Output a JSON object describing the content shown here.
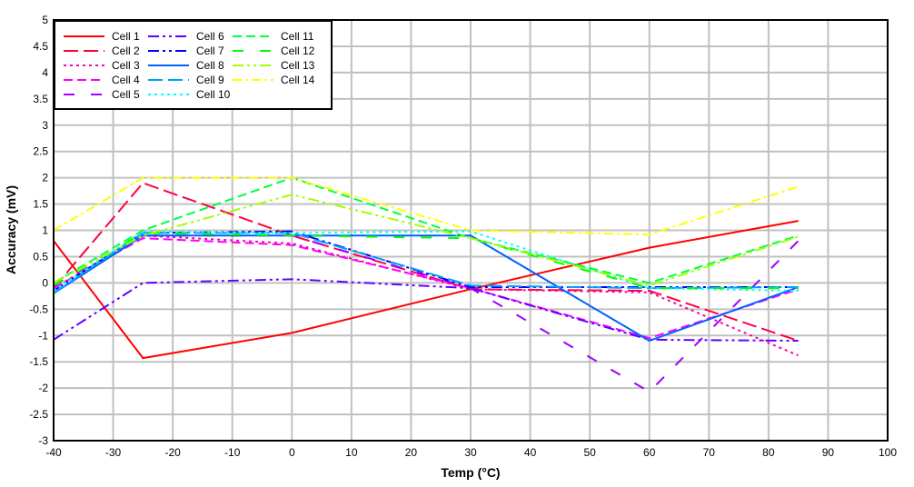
{
  "chart_data": {
    "type": "line",
    "title": "",
    "xlabel": "Temp (°C)",
    "ylabel": "Accuracy (mV)",
    "xlim": [
      -40,
      100
    ],
    "ylim": [
      -3,
      5
    ],
    "xticks": [
      -40,
      -30,
      -20,
      -10,
      0,
      10,
      20,
      30,
      40,
      50,
      60,
      70,
      80,
      90,
      100
    ],
    "yticks": [
      -3,
      -2.5,
      -2,
      -1.5,
      -1,
      -0.5,
      0,
      0.5,
      1,
      1.5,
      2,
      2.5,
      3,
      3.5,
      4,
      4.5,
      5
    ],
    "grid": true,
    "legend_position": "top-left",
    "x": [
      -40,
      -25,
      0,
      30,
      60,
      85
    ],
    "series": [
      {
        "name": "Cell 1",
        "color": "#ff0000",
        "dash": "solid",
        "values": [
          0.8,
          -1.43,
          -0.95,
          -0.12,
          0.67,
          1.18
        ]
      },
      {
        "name": "Cell 2",
        "color": "#ff0040",
        "dash": "longdash",
        "values": [
          -0.1,
          1.9,
          0.9,
          -0.12,
          -0.15,
          -1.1
        ]
      },
      {
        "name": "Cell 3",
        "color": "#ff00a0",
        "dash": "dot",
        "values": [
          -0.1,
          0.9,
          0.75,
          -0.12,
          -0.18,
          -1.38
        ]
      },
      {
        "name": "Cell 4",
        "color": "#ff00ff",
        "dash": "dash",
        "values": [
          -0.1,
          0.85,
          0.72,
          -0.1,
          -1.05,
          -0.12
        ]
      },
      {
        "name": "Cell 5",
        "color": "#a000ff",
        "dash": "longgap",
        "values": [
          -0.05,
          0.9,
          0.9,
          -0.1,
          -2.07,
          0.8
        ]
      },
      {
        "name": "Cell 6",
        "color": "#6000ff",
        "dash": "dashdotdot",
        "values": [
          -1.08,
          0,
          0.07,
          -0.1,
          -1.08,
          -1.1
        ]
      },
      {
        "name": "Cell 7",
        "color": "#0000ff",
        "dash": "dashdotdot",
        "values": [
          -0.15,
          0.95,
          0.98,
          -0.08,
          -0.08,
          -0.08
        ]
      },
      {
        "name": "Cell 8",
        "color": "#0060ff",
        "dash": "solid",
        "values": [
          -0.2,
          0.9,
          0.9,
          0.9,
          -1.1,
          -0.08
        ]
      },
      {
        "name": "Cell 9",
        "color": "#00a0ff",
        "dash": "longdash",
        "values": [
          -0.2,
          0.95,
          0.95,
          -0.05,
          -0.1,
          -0.08
        ]
      },
      {
        "name": "Cell 10",
        "color": "#00ffff",
        "dash": "dot",
        "values": [
          -0.15,
          0.98,
          0.95,
          0.98,
          -0.1,
          -0.15
        ]
      },
      {
        "name": "Cell 11",
        "color": "#00ff40",
        "dash": "dash",
        "values": [
          0,
          1.0,
          2.0,
          0.85,
          0,
          0.9
        ]
      },
      {
        "name": "Cell 12",
        "color": "#00ff00",
        "dash": "longgap",
        "values": [
          -0.05,
          0.95,
          0.9,
          0.85,
          -0.1,
          -0.1
        ]
      },
      {
        "name": "Cell 13",
        "color": "#a0ff00",
        "dash": "dashdotdot",
        "values": [
          0,
          0.9,
          1.68,
          0.85,
          -0.05,
          0.88
        ]
      },
      {
        "name": "Cell 14",
        "color": "#ffff00",
        "dash": "dashdot",
        "values": [
          1.0,
          2.0,
          2.0,
          1.0,
          0.92,
          1.83
        ]
      }
    ]
  }
}
